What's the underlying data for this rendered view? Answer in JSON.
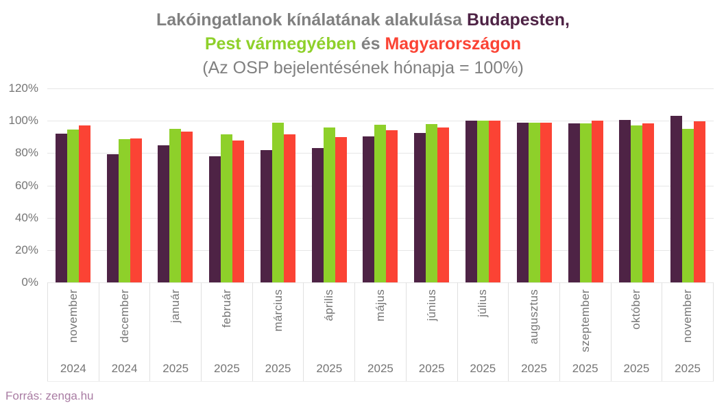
{
  "title": {
    "line1_gray": "Lakóingatlanok kínálatának alakulása ",
    "line1_purple": "Budapesten,",
    "line2_green": "Pest vármegyében",
    "line2_gray": " és ",
    "line2_red": "Magyarországon",
    "line3": "(Az OSP bejelentésének hónapja = 100%)"
  },
  "source": "Forrás: zenga.hu",
  "colors": {
    "title_gray": "#808080",
    "budapest_purple": "#4e2345",
    "pest_green": "#8ed02a",
    "hungary_red": "#fb4334",
    "axis_text": "#757575",
    "gridline": "#e6e6e6",
    "source_text": "#a97ca3"
  },
  "chart_data": {
    "type": "bar",
    "title": "Lakóingatlanok kínálatának alakulása Budapesten, Pest vármegyében és Magyarországon",
    "subtitle": "(Az OSP bejelentésének hónapja = 100%)",
    "xlabel": "",
    "ylabel": "",
    "ylim": [
      0,
      120
    ],
    "grid": true,
    "legend_position": "none (series identified by title colors)",
    "y_tick_labels": [
      "120%",
      "100%",
      "80%",
      "60%",
      "40%",
      "20%",
      "0%"
    ],
    "y_tick_values": [
      120,
      100,
      80,
      60,
      40,
      20,
      0
    ],
    "months": [
      "november",
      "december",
      "január",
      "február",
      "március",
      "április",
      "május",
      "június",
      "július",
      "augusztus",
      "szeptember",
      "október",
      "november"
    ],
    "years": [
      "2024",
      "2024",
      "2025",
      "2025",
      "2025",
      "2025",
      "2025",
      "2025",
      "2025",
      "2025",
      "2025",
      "2025",
      "2025"
    ],
    "series": [
      {
        "id": "budapest",
        "name": "Budapesten",
        "color": "#4e2345",
        "values": [
          92,
          79.5,
          85,
          78,
          82,
          83,
          90.5,
          92.5,
          100,
          99,
          98.5,
          100.5,
          103
        ]
      },
      {
        "id": "pest",
        "name": "Pest vármegyében",
        "color": "#8ed02a",
        "values": [
          94.5,
          88.5,
          95,
          91.5,
          99,
          96,
          97.5,
          98,
          100,
          99,
          98.5,
          97,
          95
        ]
      },
      {
        "id": "magyarorszag",
        "name": "Magyarországon",
        "color": "#fb4334",
        "values": [
          97,
          89,
          93.5,
          88,
          91.5,
          90,
          94,
          96,
          100,
          99,
          100,
          98.5,
          99.5
        ]
      }
    ]
  }
}
